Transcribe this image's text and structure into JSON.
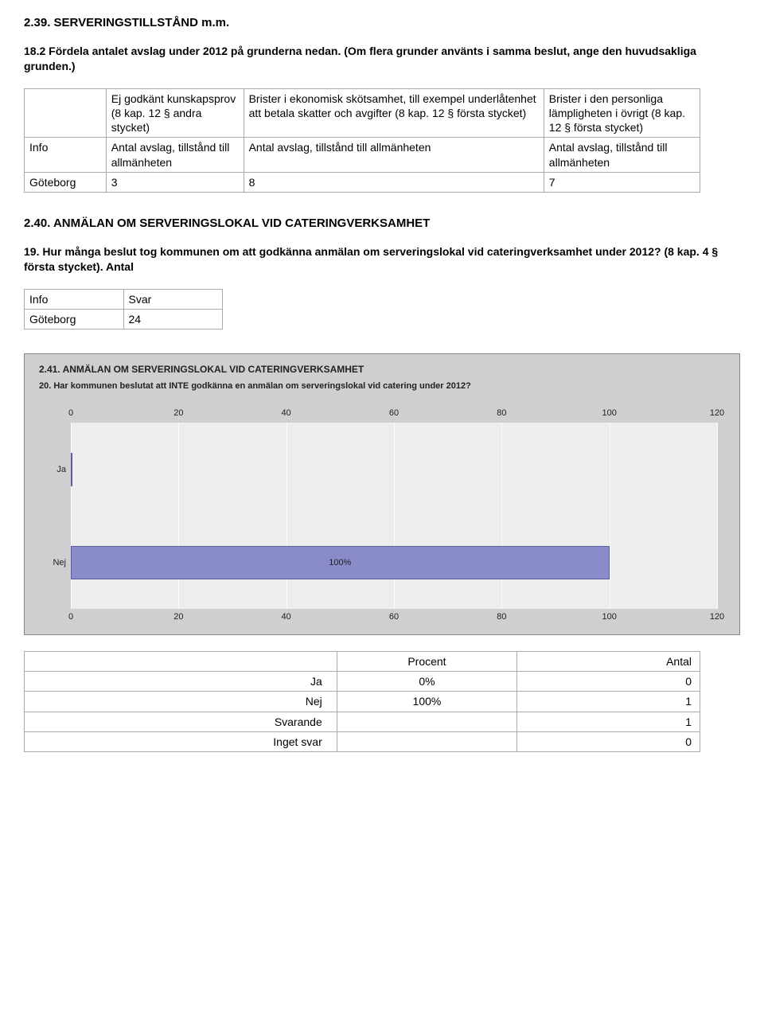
{
  "section1": {
    "heading": "2.39. SERVERINGSTILLSTÅND m.m.",
    "question": "18.2 Fördela antalet avslag under 2012 på grunderna nedan. (Om flera grunder använts i samma beslut, ange den huvudsakliga grunden.)"
  },
  "table1": {
    "r0c1": "Ej godkänt kunskapsprov (8 kap. 12 § andra stycket)",
    "r0c2": "Brister i ekonomisk skötsamhet, till exempel underlåtenhet att betala skatter och avgifter (8 kap. 12 § första stycket)",
    "r0c3": "Brister i den personliga lämpligheten i övrigt (8 kap. 12 § första stycket)",
    "r1c0": "Info",
    "r1c1": "Antal avslag, tillstånd till allmänheten",
    "r1c2": "Antal avslag, tillstånd till allmänheten",
    "r1c3": "Antal avslag, tillstånd till allmänheten",
    "r2c0": "Göteborg",
    "r2c1": "3",
    "r2c2": "8",
    "r2c3": "7"
  },
  "section2": {
    "heading": "2.40. ANMÄLAN OM SERVERINGSLOKAL VID CATERINGVERKSAMHET",
    "question": "19. Hur många beslut tog kommunen om att godkänna anmälan om serveringslokal vid cateringverksamhet under 2012? (8 kap. 4 § första stycket). Antal"
  },
  "table2": {
    "r0c0": "Info",
    "r0c1": "Svar",
    "r1c0": "Göteborg",
    "r1c1": "24"
  },
  "chart": {
    "title1": "2.41. ANMÄLAN OM SERVERINGSLOKAL VID CATERINGVERKSAMHET",
    "title2": "20. Har kommunen beslutat att INTE godkänna en anmälan om serveringslokal vid catering under 2012?",
    "categories": [
      "Ja",
      "Nej"
    ],
    "values_pct": [
      0,
      100
    ],
    "bar_value_label": "100%",
    "xmin": 0,
    "xmax": 120,
    "ticks": [
      0,
      20,
      40,
      60,
      80,
      100,
      120
    ],
    "bar_fill": "#8a8cc9",
    "bar_border": "#5c5ea3",
    "plot_bg": "#ededed",
    "outer_bg": "#cfcfcf",
    "grid_color": "#fbfbfb"
  },
  "table3": {
    "h1": "Procent",
    "h2": "Antal",
    "rows": [
      {
        "label": "Ja",
        "pct": "0%",
        "n": "0"
      },
      {
        "label": "Nej",
        "pct": "100%",
        "n": "1"
      },
      {
        "label": "Svarande",
        "pct": "",
        "n": "1"
      },
      {
        "label": "Inget svar",
        "pct": "",
        "n": "0"
      }
    ]
  }
}
